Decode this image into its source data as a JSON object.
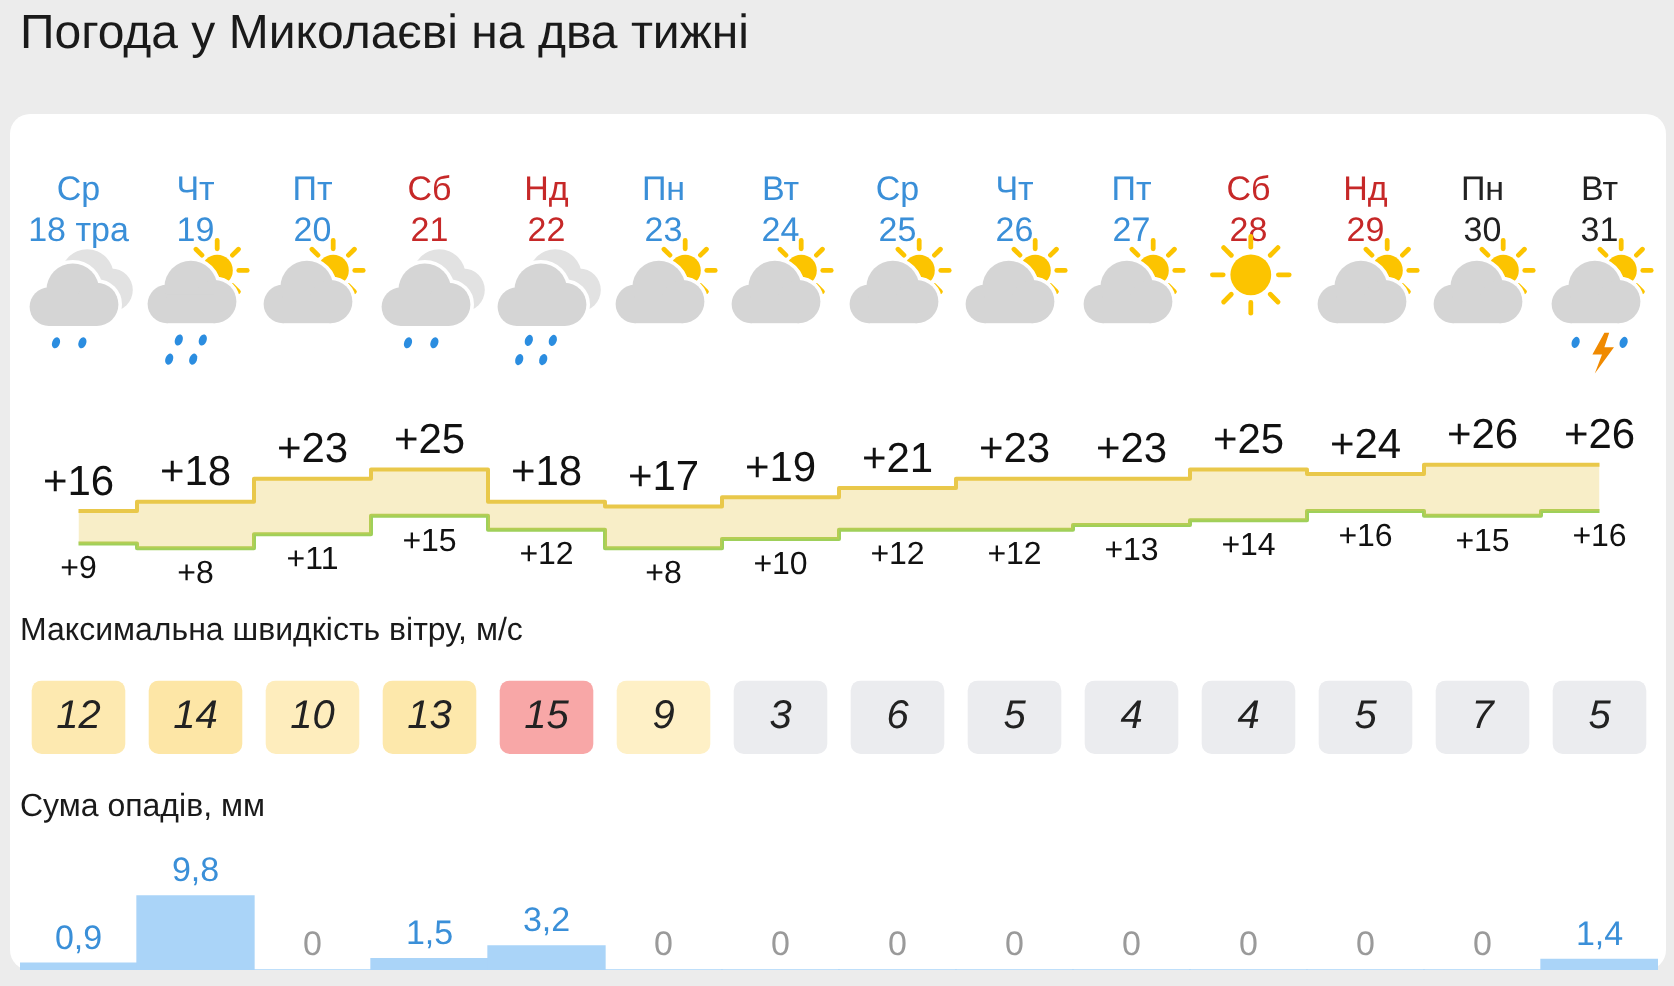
{
  "chart_data": [
    {
      "type": "step",
      "title": "Погода у Миколаєві на два тижні",
      "categories": [
        "Ср 18 тра",
        "Чт 19",
        "Пт 20",
        "Сб 21",
        "Нд 22",
        "Пн 23",
        "Вт 24",
        "Ср 25",
        "Чт 26",
        "Пт 27",
        "Сб 28",
        "Нд 29",
        "Пн 30",
        "Вт 31"
      ],
      "series": [
        {
          "color": "#e9c84a",
          "values": [
            16,
            18,
            23,
            25,
            18,
            17,
            19,
            21,
            23,
            23,
            25,
            24,
            26,
            26
          ],
          "value_labels": [
            "+16",
            "+18",
            "+23",
            "+25",
            "+18",
            "+17",
            "+19",
            "+21",
            "+23",
            "+23",
            "+25",
            "+24",
            "+26",
            "+26"
          ]
        },
        {
          "color": "#9fd05a",
          "values": [
            9,
            8,
            11,
            15,
            12,
            8,
            10,
            12,
            12,
            13,
            14,
            16,
            15,
            16
          ],
          "value_labels": [
            "+9",
            "+8",
            "+11",
            "+15",
            "+12",
            "+8",
            "+10",
            "+12",
            "+12",
            "+13",
            "+14",
            "+16",
            "+15",
            "+16"
          ]
        }
      ],
      "marker": "none",
      "line_style": "solid",
      "tick_labels": "x"
    },
    {
      "type": "heatmap",
      "title": "Максимальна швидкість вітру, м/с",
      "categories": [
        null,
        null,
        null,
        null,
        null,
        null,
        null,
        null,
        null,
        null,
        null,
        null,
        null,
        null
      ],
      "y_categories": [
        null
      ],
      "cells": [
        [
          12,
          14,
          10,
          13,
          15,
          9,
          3,
          6,
          5,
          4,
          4,
          5,
          7,
          5
        ]
      ],
      "colors": [
        [
          "#fde9b0",
          "#fde6a6",
          "#feedbd",
          "#fde8ab",
          "#f8a7a7",
          "#fef0c6",
          "#ebecef",
          "#ebecef",
          "#ebecef",
          "#ebecef",
          "#ebecef",
          "#ebecef",
          "#ebecef",
          "#ebecef"
        ]
      ],
      "data_labels": true,
      "tick_labels": false
    },
    {
      "type": "bar",
      "title": "Сума опадів, мм",
      "categories": [
        null,
        null,
        null,
        null,
        null,
        null,
        null,
        null,
        null,
        null,
        null,
        null,
        null,
        null
      ],
      "values": [
        0.9,
        9.8,
        0,
        1.5,
        3.2,
        0,
        0,
        0,
        0,
        0,
        0,
        0,
        0,
        1.4
      ],
      "value_labels": [
        "0,9",
        "9,8",
        "0",
        "1,5",
        "3,2",
        "0",
        "0",
        "0",
        "0",
        "0",
        "0",
        "0",
        "0",
        "1,4"
      ],
      "color": "#aad4f8",
      "tick_labels": false
    }
  ]
}
